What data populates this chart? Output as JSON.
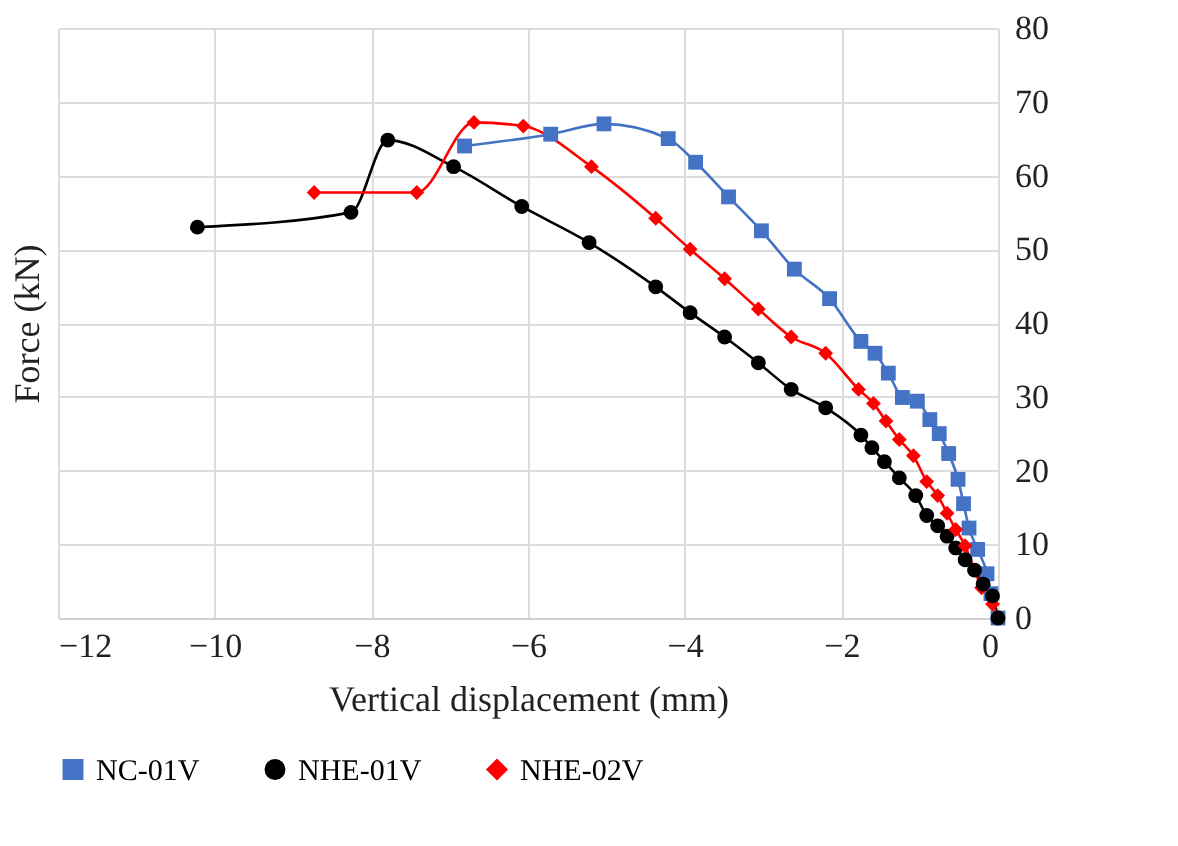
{
  "chart_data": {
    "type": "line",
    "xlabel": "Vertical displacement (mm)",
    "ylabel": "Force (kN)",
    "xlim": [
      -12,
      0
    ],
    "xticks": [
      -12,
      -10,
      -8,
      -6,
      -4,
      -2,
      0
    ],
    "ylim": [
      0,
      80
    ],
    "yticks": [
      0,
      10,
      20,
      30,
      40,
      50,
      60,
      70,
      80
    ],
    "grid": true,
    "legend": "bottom",
    "series": [
      {
        "name": "NC-01V",
        "color": "#4472c4",
        "marker": "square",
        "x": [
          -6.81,
          -5.71,
          -5.03,
          -4.21,
          -3.86,
          -3.44,
          -3.02,
          -2.6,
          -2.15,
          -1.75,
          -1.57,
          -1.4,
          -1.22,
          -1.03,
          -0.87,
          -0.75,
          -0.63,
          -0.51,
          -0.44,
          -0.37,
          -0.26,
          -0.14,
          -0.09,
          0
        ],
        "values": [
          64,
          65.6,
          67,
          65,
          61.8,
          57.1,
          52.5,
          47.3,
          43.3,
          37.5,
          35.9,
          33.2,
          29.9,
          29.4,
          26.9,
          25,
          22.3,
          18.8,
          15.5,
          12.2,
          9.3,
          6,
          3.3,
          0
        ]
      },
      {
        "name": "NHE-01V",
        "color": "#000000",
        "marker": "circle",
        "x": [
          -10.22,
          -8.26,
          -7.79,
          -6.95,
          -6.08,
          -5.22,
          -4.37,
          -3.93,
          -3.49,
          -3.06,
          -2.64,
          -2.2,
          -1.75,
          -1.61,
          -1.45,
          -1.26,
          -1.05,
          -0.91,
          -0.77,
          -0.65,
          -0.54,
          -0.42,
          -0.3,
          -0.19,
          -0.07,
          0
        ],
        "values": [
          53,
          55,
          64.8,
          61.2,
          55.8,
          50.9,
          44.9,
          41.4,
          38.1,
          34.6,
          31,
          28.5,
          24.8,
          23.1,
          21.2,
          19,
          16.6,
          13.9,
          12.5,
          11.1,
          9.5,
          7.9,
          6.5,
          4.6,
          3,
          0
        ]
      },
      {
        "name": "NHE-02V",
        "color": "#ff0000",
        "marker": "diamond",
        "x": [
          -8.73,
          -7.42,
          -6.69,
          -6.06,
          -5.19,
          -4.37,
          -3.93,
          -3.49,
          -3.06,
          -2.64,
          -2.2,
          -1.78,
          -1.59,
          -1.43,
          -1.26,
          -1.08,
          -0.91,
          -0.77,
          -0.65,
          -0.54,
          -0.42,
          -0.3,
          -0.21,
          -0.07,
          0
        ],
        "values": [
          57.7,
          57.7,
          67.2,
          66.7,
          61.2,
          54.2,
          50,
          46,
          41.9,
          38.1,
          35.9,
          31,
          29.1,
          26.7,
          24.2,
          22,
          18.5,
          16.6,
          14.2,
          12,
          9.8,
          6.5,
          4.1,
          1.9,
          0
        ]
      }
    ]
  }
}
